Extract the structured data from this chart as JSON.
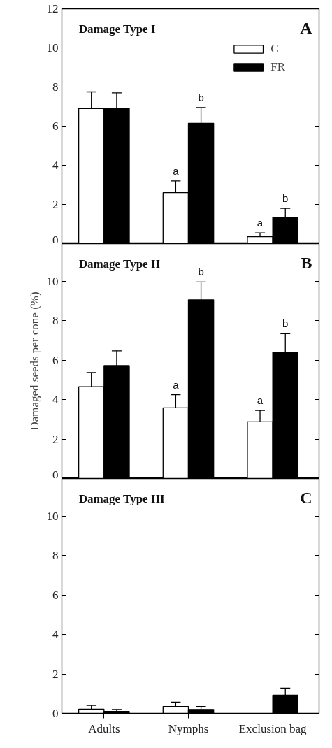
{
  "chart_data": [
    {
      "type": "bar",
      "title": "Damage Type I",
      "annotations": [
        "A",
        {
          "text": "a",
          "x": "Nymphs",
          "y": 2.6
        },
        {
          "text": "b",
          "x": "Nymphs",
          "y": 6.15
        },
        {
          "text": "a",
          "x": "Exclusion bag",
          "y": 0.35
        },
        {
          "text": "b",
          "x": "Exclusion bag",
          "y": 1.35
        }
      ],
      "categories": [
        "Adults",
        "Nymphs",
        "Exclusion bag"
      ],
      "series": [
        {
          "name": "C",
          "color": "#ffffff",
          "values": [
            6.9,
            2.6,
            0.35
          ],
          "errors": [
            [
              6.9,
              7.75
            ],
            [
              2.6,
              3.2
            ],
            [
              0.35,
              0.55
            ]
          ]
        },
        {
          "name": "FR",
          "color": "#000000",
          "values": [
            6.9,
            6.15,
            1.35
          ],
          "errors": [
            [
              6.9,
              7.7
            ],
            [
              6.15,
              6.95
            ],
            [
              1.35,
              1.8
            ]
          ]
        }
      ],
      "ylim": [
        0,
        12
      ],
      "yticks": [
        0,
        2,
        4,
        6,
        8,
        10,
        12
      ],
      "legend": "top right",
      "grid": false,
      "tick_labels": "y"
    },
    {
      "type": "bar",
      "title": "Damage Type II",
      "ylabel": "Damaged seeds per cone (%)",
      "annotations": [
        "B",
        {
          "text": "b",
          "x": "Nymphs",
          "y": 9.05
        },
        {
          "text": "a",
          "x": "Nymphs",
          "y": 3.58
        },
        {
          "text": "a",
          "x": "Exclusion bag",
          "y": 2.87
        },
        {
          "text": "b",
          "x": "Exclusion bag",
          "y": 6.4
        }
      ],
      "categories": [
        "Adults",
        "Nymphs",
        "Exclusion bag"
      ],
      "series": [
        {
          "color": "#ffffff",
          "values": [
            4.65,
            3.58,
            2.87
          ],
          "errors": [
            [
              4.65,
              5.37
            ],
            [
              3.58,
              4.25
            ],
            [
              2.87,
              3.45
            ]
          ]
        },
        {
          "color": "#000000",
          "values": [
            5.72,
            9.05,
            6.4
          ],
          "errors": [
            [
              5.72,
              6.47
            ],
            [
              9.05,
              9.96
            ],
            [
              6.4,
              7.34
            ]
          ]
        }
      ],
      "ylim": [
        0,
        11.9
      ],
      "yticks": [
        0,
        2,
        4,
        6,
        8,
        10
      ],
      "grid": false,
      "tick_labels": "y"
    },
    {
      "type": "bar",
      "title": "Damage Type III",
      "annotations": [
        "C"
      ],
      "categories": [
        "Adults",
        "Nymphs",
        "Exclusion bag"
      ],
      "series": [
        {
          "color": "#ffffff",
          "values": [
            0.22,
            0.35,
            null
          ],
          "errors": [
            [
              0.22,
              0.4
            ],
            [
              0.35,
              0.57
            ],
            null
          ]
        },
        {
          "color": "#000000",
          "values": [
            0.1,
            0.2,
            0.92
          ],
          "errors": [
            [
              0.1,
              0.2
            ],
            [
              0.2,
              0.35
            ],
            [
              0.92,
              1.28
            ]
          ]
        }
      ],
      "ylim": [
        0,
        11.9
      ],
      "yticks": [
        0,
        2,
        4,
        6,
        8,
        10
      ],
      "grid": false
    }
  ]
}
